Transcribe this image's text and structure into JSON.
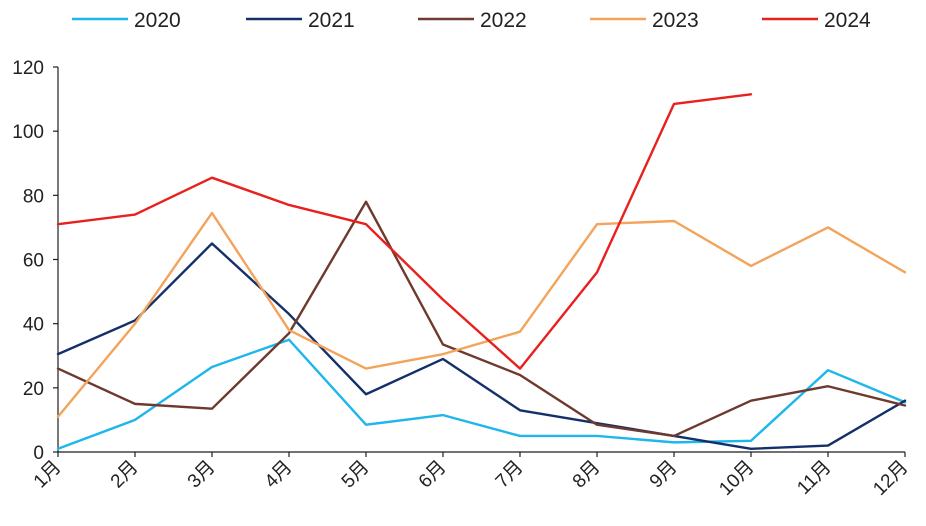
{
  "chart_data": {
    "type": "line",
    "title": "",
    "xlabel": "",
    "ylabel": "",
    "ylim": [
      0,
      120
    ],
    "yticks": [
      0,
      20,
      40,
      60,
      80,
      100,
      120
    ],
    "grid": false,
    "legend_position": "top",
    "categories": [
      "1月",
      "2月",
      "3月",
      "4月",
      "5月",
      "6月",
      "7月",
      "8月",
      "9月",
      "10月",
      "11月",
      "12月"
    ],
    "series": [
      {
        "name": "2020",
        "color": "#1FB6EC",
        "values": [
          1,
          10,
          26.5,
          35,
          8.5,
          11.5,
          5,
          5,
          3,
          3.5,
          25.5,
          15.5
        ]
      },
      {
        "name": "2021",
        "color": "#14306B",
        "values": [
          30.5,
          41,
          65,
          43,
          18,
          29,
          13,
          9,
          5,
          1,
          2,
          16
        ]
      },
      {
        "name": "2022",
        "color": "#6E3A2E",
        "values": [
          26,
          15,
          13.5,
          37,
          78,
          33.5,
          24,
          8.5,
          5,
          16,
          20.5,
          14.5
        ]
      },
      {
        "name": "2023",
        "color": "#F4A35B",
        "values": [
          11,
          40,
          74.5,
          38,
          26,
          30.5,
          37.5,
          71,
          72,
          58,
          70,
          56
        ]
      },
      {
        "name": "2024",
        "color": "#E8201E",
        "values": [
          71,
          74,
          85.5,
          77,
          71,
          47.5,
          26,
          56,
          108.5,
          111.5,
          null,
          null
        ]
      }
    ]
  }
}
